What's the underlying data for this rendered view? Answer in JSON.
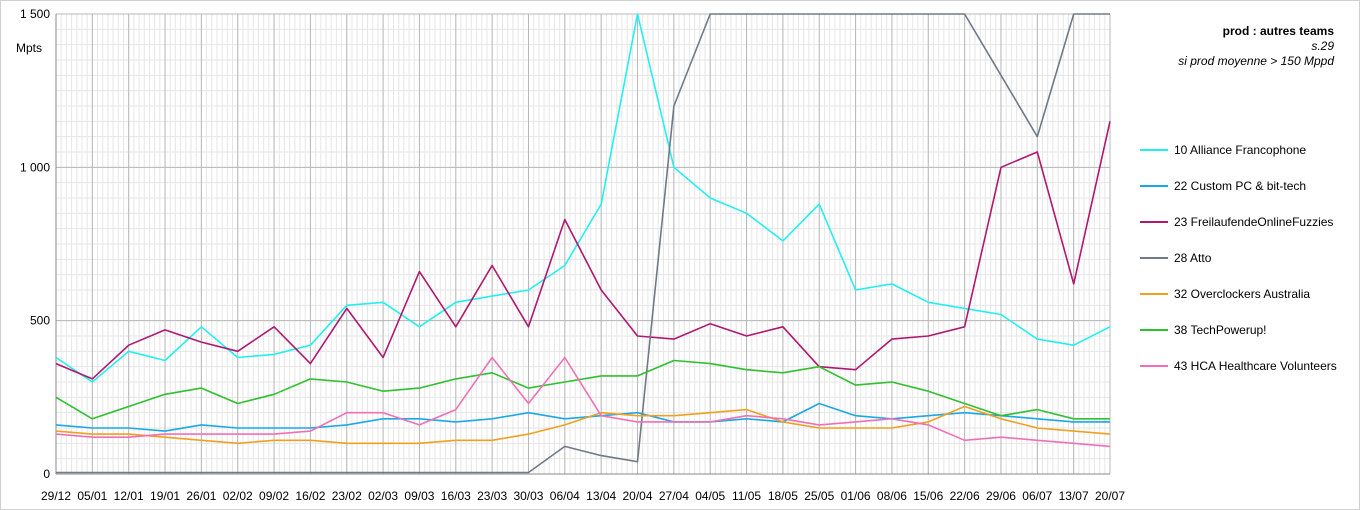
{
  "chart_data": {
    "type": "line",
    "title": "prod : autres teams",
    "subtitle": "s.29",
    "subtitle2": "si prod moyenne > 150 Mppd",
    "ylabel": "Mpts",
    "ylim": [
      0,
      1500
    ],
    "yticks": [
      0,
      500,
      1000,
      1500
    ],
    "ytick_labels": [
      "0",
      "500",
      "1 000",
      "1 500"
    ],
    "x_ticks": [
      "29/12",
      "05/01",
      "12/01",
      "19/01",
      "26/01",
      "02/02",
      "09/02",
      "16/02",
      "23/02",
      "02/03",
      "09/03",
      "16/03",
      "23/03",
      "30/03",
      "06/04",
      "13/04",
      "20/04",
      "27/04",
      "04/05",
      "11/05",
      "18/05",
      "25/05",
      "01/06",
      "08/06",
      "15/06",
      "22/06",
      "29/06",
      "06/07",
      "13/07",
      "20/07"
    ],
    "grid": true,
    "legend_position": "right",
    "x_weeks": [
      0,
      1,
      2,
      3,
      4,
      5,
      6,
      7,
      8,
      9,
      10,
      11,
      12,
      13,
      14,
      15,
      16,
      17,
      18,
      19,
      20,
      21,
      22,
      23,
      24,
      25,
      26,
      27,
      28,
      29
    ],
    "series": [
      {
        "name": "10 Alliance Francophone",
        "color": "#22f0f0",
        "values": [
          380,
          300,
          400,
          370,
          480,
          380,
          390,
          420,
          550,
          560,
          480,
          560,
          580,
          600,
          680,
          880,
          1520,
          1000,
          900,
          850,
          760,
          880,
          600,
          620,
          560,
          540,
          520,
          440,
          420,
          480
        ]
      },
      {
        "name": "22 Custom PC & bit-tech",
        "color": "#1aa8e8",
        "values": [
          160,
          150,
          150,
          140,
          160,
          150,
          150,
          150,
          160,
          180,
          180,
          170,
          180,
          200,
          180,
          190,
          200,
          170,
          170,
          180,
          170,
          230,
          190,
          180,
          190,
          200,
          190,
          180,
          170,
          170
        ]
      },
      {
        "name": "23 FreilaufendeOnlineFuzzies",
        "color": "#b01870",
        "values": [
          360,
          310,
          420,
          470,
          430,
          400,
          480,
          360,
          540,
          380,
          660,
          480,
          680,
          480,
          830,
          600,
          450,
          440,
          490,
          450,
          480,
          350,
          340,
          440,
          450,
          480,
          1000,
          1050,
          620,
          1150
        ]
      },
      {
        "name": "28 Atto",
        "color": "#707a86",
        "values": [
          5,
          5,
          5,
          5,
          5,
          5,
          5,
          5,
          5,
          5,
          5,
          5,
          5,
          5,
          90,
          60,
          40,
          1200,
          1500,
          1500,
          1500,
          1500,
          1500,
          1500,
          1500,
          1500,
          1300,
          1100,
          1500,
          1500
        ]
      },
      {
        "name": "32 Overclockers Australia",
        "color": "#f0a020",
        "values": [
          140,
          130,
          130,
          120,
          110,
          100,
          110,
          110,
          100,
          100,
          100,
          110,
          110,
          130,
          160,
          200,
          190,
          190,
          200,
          210,
          170,
          150,
          150,
          150,
          170,
          220,
          180,
          150,
          140,
          130
        ]
      },
      {
        "name": "38 TechPowerup!",
        "color": "#30c030",
        "values": [
          250,
          180,
          220,
          260,
          280,
          230,
          260,
          310,
          300,
          270,
          280,
          310,
          330,
          280,
          300,
          320,
          320,
          370,
          360,
          340,
          330,
          350,
          290,
          300,
          270,
          230,
          190,
          210,
          180,
          180
        ]
      },
      {
        "name": "43 HCA Healthcare Volunteers",
        "color": "#f070b8",
        "values": [
          130,
          120,
          120,
          130,
          130,
          130,
          130,
          140,
          200,
          200,
          160,
          210,
          380,
          230,
          380,
          190,
          170,
          170,
          170,
          190,
          180,
          160,
          170,
          180,
          160,
          110,
          120,
          110,
          100,
          90
        ]
      }
    ]
  }
}
